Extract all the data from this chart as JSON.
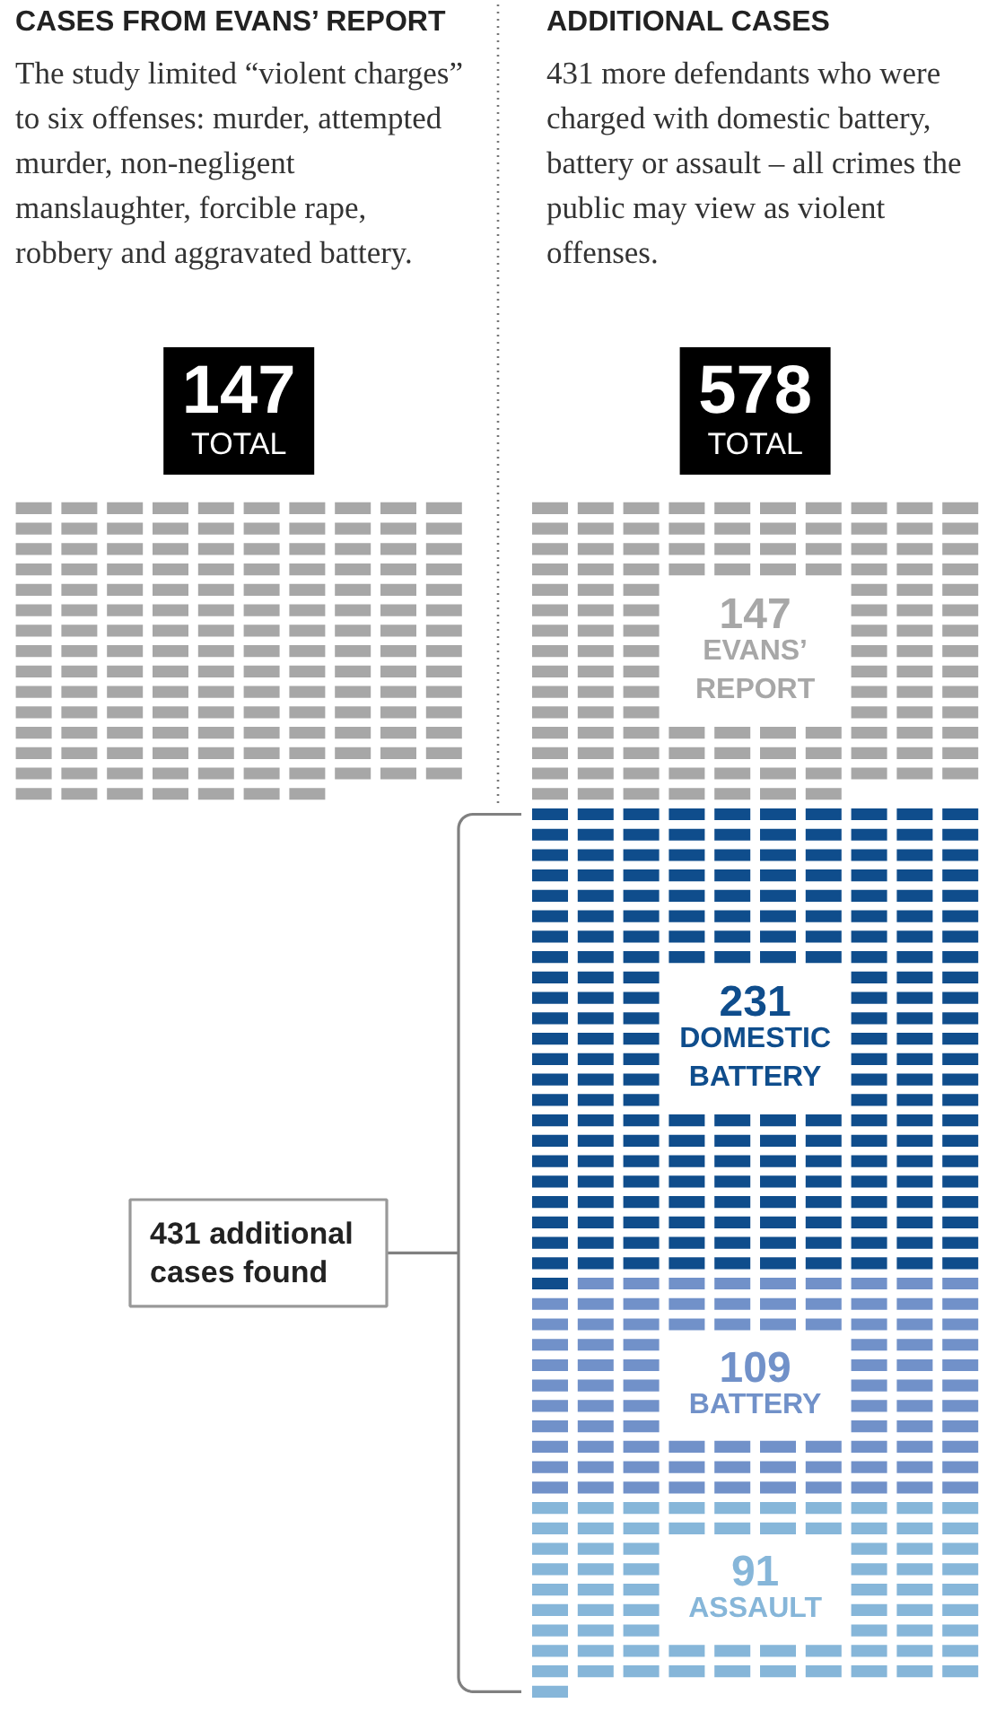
{
  "chart_data": [
    {
      "type": "other",
      "title": "CASES FROM EVANS’ REPORT",
      "subtitle": "The study limited “violent charges” to six offenses: murder, attempted murder, non-negligent manslaughter, forcible rape, robbery and aggravated battery.",
      "values": [
        147
      ],
      "colors": [
        "#a7a7a7"
      ],
      "data_labels": true,
      "annotations": [
        "TOTAL"
      ]
    },
    {
      "type": "other",
      "title": "ADDITIONAL CASES",
      "subtitle": "431 more defendants who were charged with domestic battery, battery or assault – all crimes the public may view as violent offenses.",
      "categories": [
        "EVANS’ REPORT",
        "DOMESTIC BATTERY",
        "BATTERY",
        "ASSAULT"
      ],
      "values": [
        147,
        231,
        109,
        91
      ],
      "colors": [
        "#a7a7a7",
        "#0f4d8c",
        "#7191c9",
        "#86b6d9"
      ],
      "data_labels": true,
      "totals": [
        "578"
      ],
      "annotations": [
        "TOTAL",
        "431 additional cases found"
      ]
    }
  ]
}
